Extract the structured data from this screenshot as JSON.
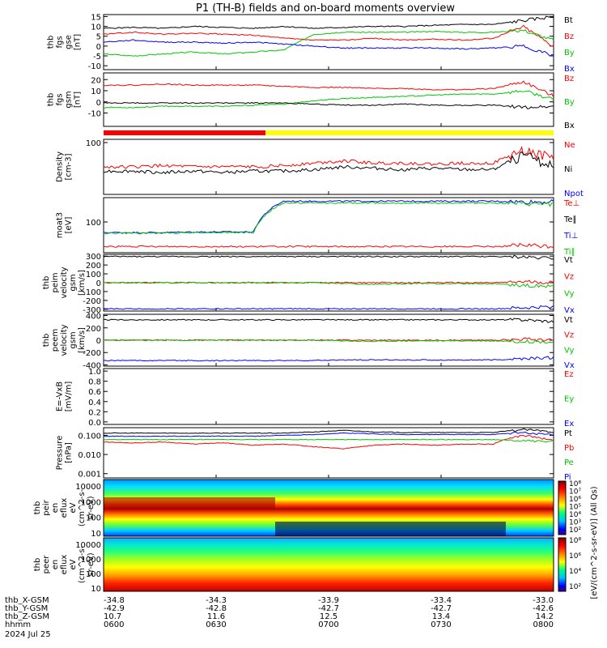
{
  "title": "P1 (TH-B) fields and on-board moments overview",
  "colors": {
    "black": "#000000",
    "red": "#ff0000",
    "green": "#00c800",
    "blue": "#0000ff",
    "yellow": "#ffff00"
  },
  "chart_data": {
    "type": "line",
    "panels": [
      {
        "id": "fgs_gse",
        "ylabel": [
          "thb",
          "fgs",
          "gse",
          "[nT]"
        ],
        "ylim": [
          -12,
          16
        ],
        "yticks": [
          "15",
          "10",
          "5",
          "0",
          "-5",
          "-10"
        ],
        "ytick_values": [
          15,
          10,
          5,
          0,
          -5,
          -10
        ],
        "series": [
          {
            "name": "Bt",
            "color": "black",
            "values": [
              9,
              9.5,
              9,
              10,
              9.5,
              9,
              10,
              9,
              9.5,
              10,
              10,
              10.5,
              11,
              11,
              13,
              15
            ]
          },
          {
            "name": "Bz",
            "color": "red",
            "values": [
              6,
              7,
              6,
              6.5,
              6,
              5.5,
              4,
              3,
              3,
              4,
              3,
              3.5,
              3,
              4,
              10,
              0
            ]
          },
          {
            "name": "By",
            "color": "green",
            "values": [
              -4,
              -5,
              -4,
              -3,
              -4,
              -3,
              -2,
              6,
              7,
              7,
              7,
              7.5,
              7,
              7,
              8,
              3
            ]
          },
          {
            "name": "Bx",
            "color": "blue",
            "values": [
              2,
              3,
              2,
              2,
              1.5,
              2,
              1,
              0,
              -1,
              -1,
              -1,
              -1,
              -1.5,
              -1,
              0,
              -5
            ]
          }
        ]
      },
      {
        "id": "fgs_gsm",
        "ylabel": [
          "thb",
          "fgs",
          "gsm",
          "[nT]"
        ],
        "ylim": [
          -22,
          26
        ],
        "yticks": [
          "20",
          "10",
          "0",
          "-10"
        ],
        "ytick_values": [
          20,
          10,
          0,
          -10
        ],
        "series": [
          {
            "name": "Bz",
            "color": "red",
            "values": [
              15,
              15,
              16,
              15,
              15,
              15,
              14,
              13,
              13,
              12,
              12,
              11,
              11,
              12,
              18,
              5
            ]
          },
          {
            "name": "By",
            "color": "green",
            "values": [
              -5,
              -5,
              -4,
              -4,
              -4,
              -3,
              -2,
              1,
              3,
              4,
              5,
              6,
              7,
              7,
              10,
              2
            ]
          },
          {
            "name": "Bx",
            "color": "black",
            "values": [
              -1,
              -1,
              -1,
              -1,
              -1,
              -1,
              -1,
              -2,
              -3,
              -3,
              -2,
              -3,
              -3,
              -3,
              -5,
              -4
            ]
          }
        ]
      },
      {
        "id": "density",
        "ylabel": [
          "Density",
          "[cm-3]"
        ],
        "scale": "log",
        "ylim": [
          0.15,
          0.6
        ],
        "yticks": [
          "100"
        ],
        "ytick_values": [
          100
        ],
        "series": [
          {
            "name": "Ne",
            "color": "red",
            "values": [
              0.3,
              0.3,
              0.31,
              0.3,
              0.3,
              0.3,
              0.31,
              0.33,
              0.35,
              0.33,
              0.33,
              0.32,
              0.33,
              0.33,
              0.45,
              0.38
            ]
          },
          {
            "name": "Ni",
            "color": "black",
            "values": [
              0.27,
              0.27,
              0.26,
              0.27,
              0.26,
              0.27,
              0.27,
              0.28,
              0.3,
              0.29,
              0.28,
              0.29,
              0.28,
              0.28,
              0.4,
              0.3
            ]
          },
          {
            "name": "Npot",
            "color": "blue",
            "values": []
          }
        ]
      },
      {
        "id": "temperature",
        "ylabel": [
          "moat3",
          "[eV]"
        ],
        "scale": "log",
        "ylim": [
          20,
          400
        ],
        "yticks": [
          "100"
        ],
        "ytick_values": [
          100
        ],
        "series": [
          {
            "name": "Te⊥",
            "color": "red",
            "values": [
              28,
              28,
              28,
              28,
              28,
              28,
              28,
              28,
              28,
              28,
              28,
              28,
              28,
              28,
              30,
              28
            ]
          },
          {
            "name": "Te∥",
            "color": "black",
            "values": []
          },
          {
            "name": "Ti⊥",
            "color": "blue",
            "values": [
              60,
              60,
              60,
              62,
              62,
              62,
              330,
              330,
              330,
              330,
              330,
              330,
              330,
              330,
              320,
              320
            ]
          },
          {
            "name": "Ti∥",
            "color": "green",
            "values": [
              58,
              58,
              58,
              60,
              60,
              60,
              300,
              300,
              300,
              300,
              300,
              300,
              300,
              300,
              280,
              280
            ]
          }
        ]
      },
      {
        "id": "peim_velocity",
        "ylabel": [
          "thb",
          "peim",
          "velocity",
          "gsm",
          "[km/s]"
        ],
        "ylim": [
          -320,
          320
        ],
        "yticks": [
          "300",
          "200",
          "100",
          "0",
          "-100",
          "-200",
          "-300"
        ],
        "ytick_values": [
          300,
          200,
          100,
          0,
          -100,
          -200,
          -300
        ],
        "series": [
          {
            "name": "Vt",
            "color": "black",
            "values": [
              295,
              295,
              295,
              295,
              295,
              295,
              295,
              295,
              295,
              295,
              295,
              295,
              295,
              295,
              290,
              280
            ]
          },
          {
            "name": "Vz",
            "color": "red",
            "values": [
              0,
              0,
              0,
              0,
              0,
              0,
              0,
              0,
              0,
              0,
              0,
              0,
              0,
              0,
              10,
              0
            ]
          },
          {
            "name": "Vy",
            "color": "green",
            "values": [
              0,
              0,
              0,
              0,
              0,
              0,
              0,
              0,
              -10,
              -20,
              -10,
              -10,
              -10,
              -10,
              -30,
              -40
            ]
          },
          {
            "name": "Vx",
            "color": "blue",
            "values": [
              -295,
              -295,
              -295,
              -295,
              -295,
              -295,
              -295,
              -295,
              -295,
              -295,
              -295,
              -295,
              -295,
              -295,
              -285,
              -270
            ]
          }
        ]
      },
      {
        "id": "peem_velocity",
        "ylabel": [
          "thb",
          "peem",
          "velocity",
          "gsm",
          "[km/s]"
        ],
        "ylim": [
          -420,
          420
        ],
        "yticks": [
          "400",
          "200",
          "0",
          "-200",
          "-400"
        ],
        "ytick_values": [
          400,
          200,
          0,
          -200,
          -400
        ],
        "series": [
          {
            "name": "Vt",
            "color": "black",
            "values": [
              330,
              330,
              330,
              330,
              330,
              330,
              330,
              330,
              330,
              330,
              330,
              330,
              330,
              330,
              330,
              300
            ]
          },
          {
            "name": "Vz",
            "color": "red",
            "values": [
              0,
              0,
              0,
              0,
              0,
              0,
              0,
              0,
              0,
              0,
              0,
              0,
              0,
              0,
              20,
              0
            ]
          },
          {
            "name": "Vy",
            "color": "green",
            "values": [
              0,
              0,
              0,
              0,
              0,
              0,
              0,
              0,
              -10,
              -20,
              -10,
              -10,
              -10,
              -10,
              -20,
              -30
            ]
          },
          {
            "name": "Vx",
            "color": "blue",
            "values": [
              -330,
              -330,
              -330,
              -330,
              -330,
              -330,
              -330,
              -330,
              -320,
              -320,
              -320,
              -320,
              -320,
              -320,
              -300,
              -280
            ]
          }
        ]
      },
      {
        "id": "efield",
        "ylabel": [
          "E=-VxB",
          "[mV/m]"
        ],
        "ylim": [
          -0.05,
          1.05
        ],
        "yticks": [
          "1.0",
          "0.8",
          "0.6",
          "0.4",
          "0.2",
          "0.0"
        ],
        "ytick_values": [
          1.0,
          0.8,
          0.6,
          0.4,
          0.2,
          0.0
        ],
        "series": [
          {
            "name": "Ez",
            "color": "red",
            "values": []
          },
          {
            "name": "Ey",
            "color": "green",
            "values": []
          },
          {
            "name": "Ex",
            "color": "blue",
            "values": []
          }
        ]
      },
      {
        "id": "pressure",
        "ylabel": [
          "Pressure",
          "[nPa]"
        ],
        "scale": "log",
        "ylim": [
          0.0006,
          0.25
        ],
        "yticks": [
          "0.100",
          "0.010",
          "0.001"
        ],
        "ytick_values": [
          0.1,
          0.01,
          0.001
        ],
        "series": [
          {
            "name": "Pt",
            "color": "black",
            "values": [
              0.13,
              0.13,
              0.13,
              0.13,
              0.13,
              0.13,
              0.13,
              0.15,
              0.18,
              0.15,
              0.14,
              0.14,
              0.14,
              0.14,
              0.2,
              0.15
            ]
          },
          {
            "name": "Pb",
            "color": "red",
            "values": [
              0.045,
              0.04,
              0.045,
              0.035,
              0.04,
              0.03,
              0.035,
              0.025,
              0.02,
              0.03,
              0.035,
              0.03,
              0.035,
              0.035,
              0.1,
              0.05
            ]
          },
          {
            "name": "Pe",
            "color": "green",
            "values": [
              0.06,
              0.06,
              0.06,
              0.06,
              0.06,
              0.06,
              0.06,
              0.06,
              0.06,
              0.06,
              0.06,
              0.06,
              0.06,
              0.06,
              0.05,
              0.05
            ]
          },
          {
            "name": "Pi",
            "color": "blue",
            "values": [
              0.09,
              0.09,
              0.09,
              0.09,
              0.09,
              0.09,
              0.1,
              0.11,
              0.13,
              0.12,
              0.11,
              0.11,
              0.11,
              0.11,
              0.14,
              0.1
            ]
          }
        ]
      },
      {
        "id": "peir_spectrogram",
        "type": "heatmap",
        "ylabel": [
          "thb",
          "peir",
          "en",
          "eflux",
          "eV",
          "(cm^2-s-",
          "sr-eV)"
        ],
        "yticks": [
          "10000",
          "1000",
          "100",
          "10"
        ],
        "ytick_values": [
          10000,
          1000,
          100,
          10
        ]
      },
      {
        "id": "peer_spectrogram",
        "type": "heatmap",
        "ylabel": [
          "thb",
          "peer",
          "en",
          "eflux",
          "eV",
          "(cm^2-s-",
          "sr-eV)"
        ],
        "yticks": [
          "10000",
          "1000",
          "100",
          "10"
        ],
        "ytick_values": [
          10000,
          1000,
          100,
          10
        ]
      }
    ],
    "colorbar": {
      "ticks": [
        "10⁸",
        "10⁷",
        "10⁶",
        "10⁵",
        "10⁴",
        "10³",
        "10²"
      ],
      "ticks_lower": [
        "10⁸",
        "10⁶",
        "10⁴",
        "10²"
      ],
      "label": "[eV/(cm^2-s-sr-eV)] (All Qs)"
    },
    "mode_bar": {
      "segments": [
        {
          "color": "red",
          "fraction": 0.36
        },
        {
          "color": "yellow",
          "fraction": 0.64
        }
      ]
    },
    "x_axis": {
      "rows": [
        {
          "label": "thb_X-GSM",
          "values": [
            "-34.8",
            "-34.3",
            "-33.9",
            "-33.4",
            "-33.0"
          ]
        },
        {
          "label": "thb_Y-GSM",
          "values": [
            "-42.9",
            "-42.8",
            "-42.7",
            "-42.7",
            "-42.6"
          ]
        },
        {
          "label": "thb_Z-GSM",
          "values": [
            "10.7",
            "11.6",
            "12.5",
            "13.4",
            "14.2"
          ]
        },
        {
          "label": "hhmm",
          "values": [
            "0600",
            "0630",
            "0700",
            "0730",
            "0800"
          ]
        }
      ],
      "date": "2024 Jul 25"
    }
  }
}
